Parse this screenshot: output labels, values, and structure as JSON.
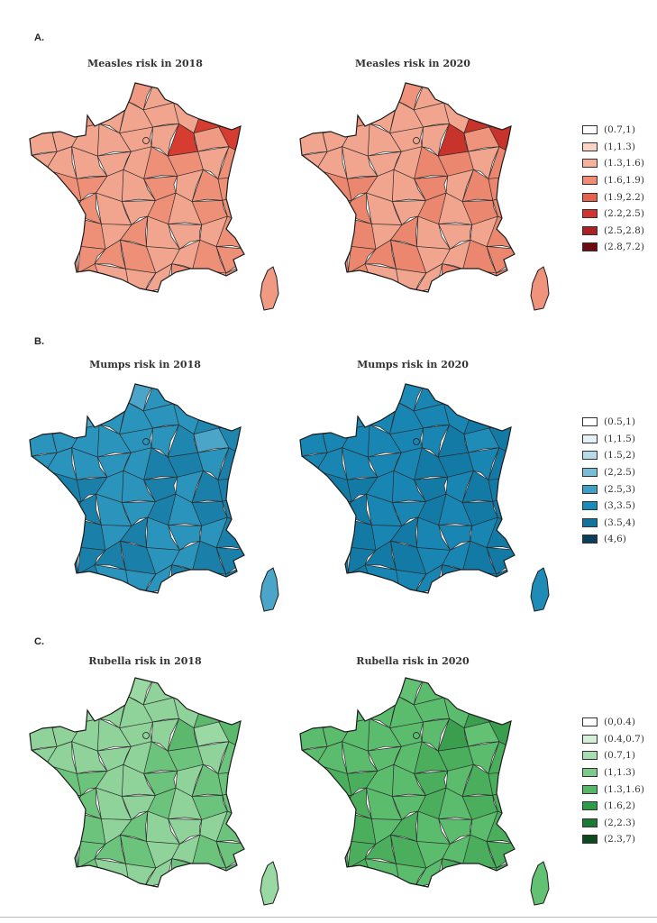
{
  "panels": [
    {
      "label": "A.",
      "maps": [
        {
          "title": "Measles risk in 2018",
          "base_color": "#f2a58e",
          "north_color": "#f09a83",
          "south_color": "#ee9077",
          "hotspot_color": "#d63c30"
        },
        {
          "title": "Measles risk in 2020",
          "base_color": "#f2a58e",
          "north_color": "#ef937c",
          "south_color": "#ec876f",
          "hotspot_color": "#c8332b"
        }
      ],
      "legend": [
        {
          "label": "(0.7,1)",
          "color": "#ffffff"
        },
        {
          "label": "(1,1.3)",
          "color": "#fbd4c6"
        },
        {
          "label": "(1.3,1.6)",
          "color": "#f6b09c"
        },
        {
          "label": "(1.6,1.9)",
          "color": "#f08b74"
        },
        {
          "label": "(1.9,2.2)",
          "color": "#e6624e"
        },
        {
          "label": "(2.2,2.5)",
          "color": "#cf3430"
        },
        {
          "label": "(2.5,2.8)",
          "color": "#a82225"
        },
        {
          "label": "(2.8,7.2)",
          "color": "#6a0d13"
        }
      ]
    },
    {
      "label": "B.",
      "maps": [
        {
          "title": "Mumps risk in 2018",
          "base_color": "#2b94bd",
          "north_color": "#4aa5c8",
          "south_color": "#1a80aa",
          "hotspot_color": "#1f86b0"
        },
        {
          "title": "Mumps risk in 2020",
          "base_color": "#1985b2",
          "north_color": "#1f8cb8",
          "south_color": "#137aa6",
          "hotspot_color": "#137aa6"
        }
      ],
      "legend": [
        {
          "label": "(0.5,1)",
          "color": "#ffffff"
        },
        {
          "label": "(1,1.5)",
          "color": "#e4f1f6"
        },
        {
          "label": "(1.5,2)",
          "color": "#b8dbe9"
        },
        {
          "label": "(2,2.5)",
          "color": "#79bcd6"
        },
        {
          "label": "(2.5,3)",
          "color": "#3ea0c5"
        },
        {
          "label": "(3,3.5)",
          "color": "#1a8cb9"
        },
        {
          "label": "(3.5,4)",
          "color": "#12739d"
        },
        {
          "label": "(4,6)",
          "color": "#0b3f59"
        }
      ]
    },
    {
      "label": "C.",
      "maps": [
        {
          "title": "Rubella risk in 2018",
          "base_color": "#8fd39a",
          "north_color": "#9ad8a4",
          "south_color": "#6cc37c",
          "hotspot_color": "#5bb86c"
        },
        {
          "title": "Rubella risk in 2020",
          "base_color": "#5cbc6d",
          "north_color": "#63c174",
          "south_color": "#4aae5d",
          "hotspot_color": "#3b9e4f"
        }
      ],
      "legend": [
        {
          "label": "(0,0.4)",
          "color": "#ffffff"
        },
        {
          "label": "(0.4,0.7)",
          "color": "#d6efd9"
        },
        {
          "label": "(0.7,1)",
          "color": "#a9dcb0"
        },
        {
          "label": "(1,1.3)",
          "color": "#7cca8a"
        },
        {
          "label": "(1.3,1.6)",
          "color": "#55b767"
        },
        {
          "label": "(1.6,2)",
          "color": "#2f9a47"
        },
        {
          "label": "(2,2.3)",
          "color": "#1b7a33"
        },
        {
          "label": "(2.3,7)",
          "color": "#0b4a1c"
        }
      ]
    }
  ]
}
